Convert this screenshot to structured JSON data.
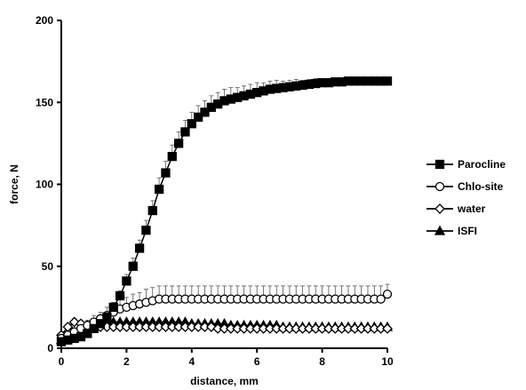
{
  "chart_data": {
    "type": "line",
    "title": "",
    "xlabel": "distance, mm",
    "ylabel": "force, N",
    "xlim": [
      0,
      10
    ],
    "ylim": [
      0,
      200
    ],
    "x_ticks": [
      "0",
      "2",
      "4",
      "6",
      "8",
      "10"
    ],
    "y_ticks": [
      "0",
      "50",
      "100",
      "150",
      "200"
    ],
    "grid": false,
    "legend_position": "right",
    "series": [
      {
        "name": "Parocline",
        "marker": "filled-square",
        "color": "#000000",
        "x": [
          0,
          0.2,
          0.4,
          0.6,
          0.8,
          1.0,
          1.2,
          1.4,
          1.6,
          1.8,
          2.0,
          2.2,
          2.4,
          2.6,
          2.8,
          3.0,
          3.2,
          3.4,
          3.6,
          3.8,
          4.0,
          4.2,
          4.4,
          4.6,
          4.8,
          5.0,
          5.2,
          5.4,
          5.6,
          5.8,
          6.0,
          6.2,
          6.4,
          6.6,
          6.8,
          7.0,
          7.2,
          7.4,
          7.6,
          7.8,
          8.0,
          8.2,
          8.4,
          8.6,
          8.8,
          9.0,
          9.2,
          9.4,
          9.6,
          9.8,
          10.0
        ],
        "y": [
          4,
          5,
          6,
          7,
          9,
          12,
          15,
          19,
          25,
          32,
          41,
          50,
          61,
          72,
          84,
          97,
          107,
          117,
          125,
          132,
          137,
          141,
          144,
          147,
          149,
          151,
          152,
          153,
          154,
          155,
          156,
          157,
          158,
          158.5,
          159,
          159.5,
          160,
          160.5,
          161,
          161.5,
          162,
          162,
          162.5,
          162.5,
          163,
          163,
          163,
          163,
          163,
          163,
          163
        ],
        "error": [
          1,
          1,
          1,
          1,
          1,
          2,
          2,
          2,
          3,
          3,
          4,
          5,
          5,
          6,
          6,
          7,
          7,
          7,
          7,
          7,
          7,
          7,
          7,
          7,
          7,
          7,
          7,
          6,
          6,
          6,
          6,
          5,
          5,
          5,
          4,
          4,
          4,
          3,
          3,
          3,
          2,
          2,
          2,
          2,
          1,
          1,
          1,
          1,
          1,
          1,
          1
        ]
      },
      {
        "name": "Chlo-site",
        "marker": "open-circle",
        "color": "#000000",
        "x": [
          0,
          0.2,
          0.4,
          0.6,
          0.8,
          1.0,
          1.2,
          1.4,
          1.6,
          1.8,
          2.0,
          2.2,
          2.4,
          2.6,
          2.8,
          3.0,
          3.2,
          3.4,
          3.6,
          3.8,
          4.0,
          4.2,
          4.4,
          4.6,
          4.8,
          5.0,
          5.2,
          5.4,
          5.6,
          5.8,
          6.0,
          6.2,
          6.4,
          6.6,
          6.8,
          7.0,
          7.2,
          7.4,
          7.6,
          7.8,
          8.0,
          8.2,
          8.4,
          8.6,
          8.8,
          9.0,
          9.2,
          9.4,
          9.6,
          9.8,
          10.0
        ],
        "y": [
          6,
          8,
          10,
          12,
          14,
          16,
          18,
          20,
          22,
          24,
          25,
          26,
          27,
          28,
          29,
          30,
          30,
          30,
          30,
          30,
          30,
          30,
          30,
          30,
          30,
          30,
          30,
          30,
          30,
          30,
          30,
          30,
          30,
          30,
          30,
          30,
          30,
          30,
          30,
          30,
          30,
          30,
          30,
          30,
          30,
          30,
          30,
          30,
          30,
          30,
          33
        ],
        "error": [
          1,
          2,
          2,
          3,
          3,
          4,
          4,
          5,
          5,
          6,
          6,
          7,
          7,
          8,
          8,
          8,
          8,
          8,
          8,
          8,
          8,
          8,
          8,
          8,
          8,
          8,
          8,
          8,
          8,
          8,
          8,
          8,
          8,
          8,
          8,
          8,
          8,
          8,
          8,
          8,
          8,
          8,
          8,
          8,
          8,
          8,
          8,
          8,
          8,
          8,
          6
        ]
      },
      {
        "name": "water",
        "marker": "open-diamond",
        "color": "#000000",
        "x": [
          0,
          0.2,
          0.4,
          0.6,
          0.8,
          1.0,
          1.2,
          1.4,
          1.6,
          1.8,
          2.0,
          2.2,
          2.4,
          2.6,
          2.8,
          3.0,
          3.2,
          3.4,
          3.6,
          3.8,
          4.0,
          4.2,
          4.4,
          4.6,
          4.8,
          5.0,
          5.2,
          5.4,
          5.6,
          5.8,
          6.0,
          6.2,
          6.4,
          6.6,
          6.8,
          7.0,
          7.2,
          7.4,
          7.6,
          7.8,
          8.0,
          8.2,
          8.4,
          8.6,
          8.8,
          9.0,
          9.2,
          9.4,
          9.6,
          9.8,
          10.0
        ],
        "y": [
          8,
          13,
          16,
          15,
          14,
          13,
          13,
          13,
          13,
          13,
          13,
          13,
          13,
          13,
          13,
          13,
          13,
          13,
          13,
          13,
          13,
          13,
          13,
          13,
          12,
          12,
          12,
          12,
          12,
          12,
          12,
          12,
          12,
          12,
          12,
          12,
          12,
          12,
          12,
          12,
          12,
          12,
          12,
          12,
          12,
          12,
          12,
          12,
          12,
          12,
          12
        ],
        "error": [
          1,
          1,
          2,
          2,
          2,
          2,
          2,
          2,
          2,
          2,
          2,
          2,
          2,
          2,
          2,
          2,
          2,
          2,
          2,
          2,
          2,
          2,
          2,
          2,
          2,
          2,
          2,
          2,
          2,
          2,
          2,
          2,
          2,
          2,
          2,
          2,
          2,
          2,
          2,
          2,
          2,
          2,
          2,
          2,
          2,
          2,
          2,
          2,
          2,
          2,
          2
        ]
      },
      {
        "name": "ISFI",
        "marker": "filled-triangle",
        "color": "#000000",
        "x": [
          0,
          0.2,
          0.4,
          0.6,
          0.8,
          1.0,
          1.2,
          1.4,
          1.6,
          1.8,
          2.0,
          2.2,
          2.4,
          2.6,
          2.8,
          3.0,
          3.2,
          3.4,
          3.6,
          3.8,
          4.0,
          4.2,
          4.4,
          4.6,
          4.8,
          5.0,
          5.2,
          5.4,
          5.6,
          5.8,
          6.0,
          6.2,
          6.4,
          6.6,
          6.8,
          7.0,
          7.2,
          7.4,
          7.6,
          7.8,
          8.0,
          8.2,
          8.4,
          8.6,
          8.8,
          9.0,
          9.2,
          9.4,
          9.6,
          9.8,
          10.0
        ],
        "y": [
          5,
          7,
          9,
          11,
          13,
          15,
          16,
          16,
          16,
          16,
          16,
          16,
          16,
          16,
          16,
          16,
          16,
          16,
          16,
          16,
          15,
          15,
          15,
          15,
          15,
          15,
          14,
          14,
          14,
          14,
          14,
          14,
          14,
          14,
          13,
          13,
          13,
          13,
          13,
          13,
          13,
          13,
          13,
          13,
          13,
          13,
          13,
          13,
          13,
          13,
          13
        ],
        "error": [
          1,
          1,
          1,
          1,
          1,
          1,
          1,
          1,
          1,
          1,
          1,
          1,
          1,
          1,
          1,
          1,
          1,
          1,
          1,
          1,
          1,
          1,
          1,
          1,
          1,
          1,
          1,
          1,
          1,
          1,
          1,
          1,
          1,
          1,
          1,
          1,
          1,
          1,
          1,
          1,
          1,
          1,
          1,
          1,
          1,
          1,
          1,
          1,
          1,
          1,
          1
        ]
      }
    ]
  }
}
